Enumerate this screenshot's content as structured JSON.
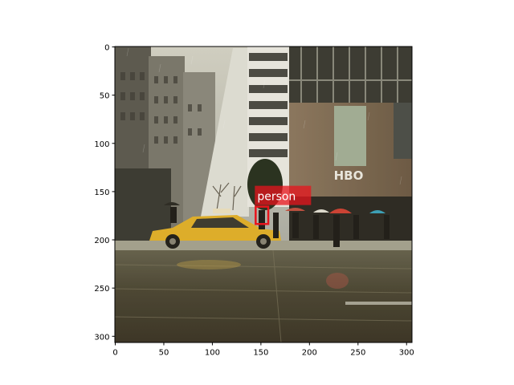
{
  "figure": {
    "x_ticks": [
      "0",
      "50",
      "100",
      "150",
      "200",
      "250",
      "300"
    ],
    "y_ticks": [
      "0",
      "50",
      "100",
      "150",
      "200",
      "250",
      "300"
    ],
    "xlim": [
      0,
      306
    ],
    "ylim": [
      306,
      0
    ]
  },
  "photo": {
    "sign_text": "HBO",
    "taxi_color": "#e8b52a"
  },
  "detection": {
    "label": "person",
    "box_color": "#e8141c",
    "box": {
      "x0": 145,
      "y0": 166,
      "x1": 158,
      "y1": 184
    }
  }
}
